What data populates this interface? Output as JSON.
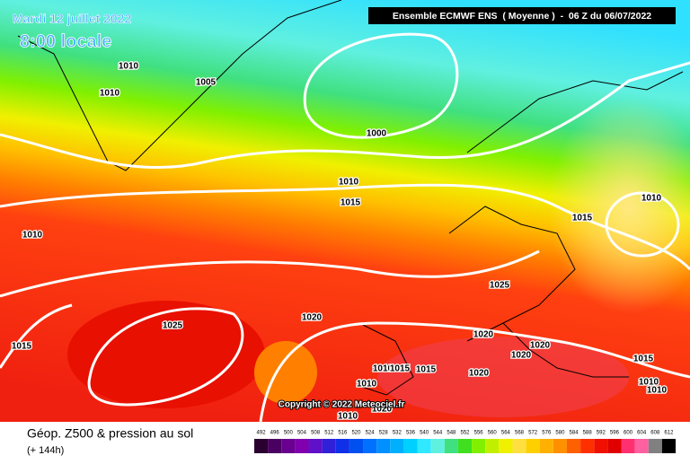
{
  "header": {
    "date": "Mardi 12 juillet 2022",
    "time": "8:00 locale",
    "model": "Ensemble ECMWF ENS  ( Moyenne )  -  06 Z du 06/07/2022"
  },
  "isobar_labels": [
    "1010",
    "1010",
    "1005",
    "1000",
    "1010",
    "1015",
    "1010",
    "1015",
    "1010",
    "1025",
    "1025",
    "1020",
    "1015",
    "1020",
    "1020",
    "1020",
    "1010",
    "1015",
    "1015",
    "1020",
    "1010",
    "1015",
    "1010",
    "1010",
    "1010",
    "1020"
  ],
  "copyright": "Copyright © 2022 Meteociel.fr",
  "footer": {
    "title": "Géop. Z500 & pression au sol",
    "subtitle": "(+ 144h)"
  },
  "scale": {
    "labels": [
      "492",
      "496",
      "500",
      "504",
      "508",
      "512",
      "516",
      "520",
      "524",
      "528",
      "532",
      "536",
      "540",
      "544",
      "548",
      "552",
      "556",
      "560",
      "564",
      "568",
      "572",
      "576",
      "580",
      "584",
      "588",
      "592",
      "596",
      "600",
      "604",
      "608",
      "612"
    ],
    "colors": [
      "#2a0030",
      "#4a0060",
      "#6a0090",
      "#8000b0",
      "#6010c8",
      "#3020d8",
      "#1030e8",
      "#0050f0",
      "#0070ff",
      "#0090ff",
      "#00b0ff",
      "#00d0ff",
      "#30e8ff",
      "#60f0e0",
      "#40e080",
      "#40e020",
      "#80f000",
      "#c0f000",
      "#f0f000",
      "#ffe040",
      "#ffd000",
      "#ffb000",
      "#ff9000",
      "#ff6000",
      "#ff3000",
      "#f01000",
      "#e00000",
      "#ff3070",
      "#ff60a0",
      "#808080",
      "#000000"
    ]
  }
}
